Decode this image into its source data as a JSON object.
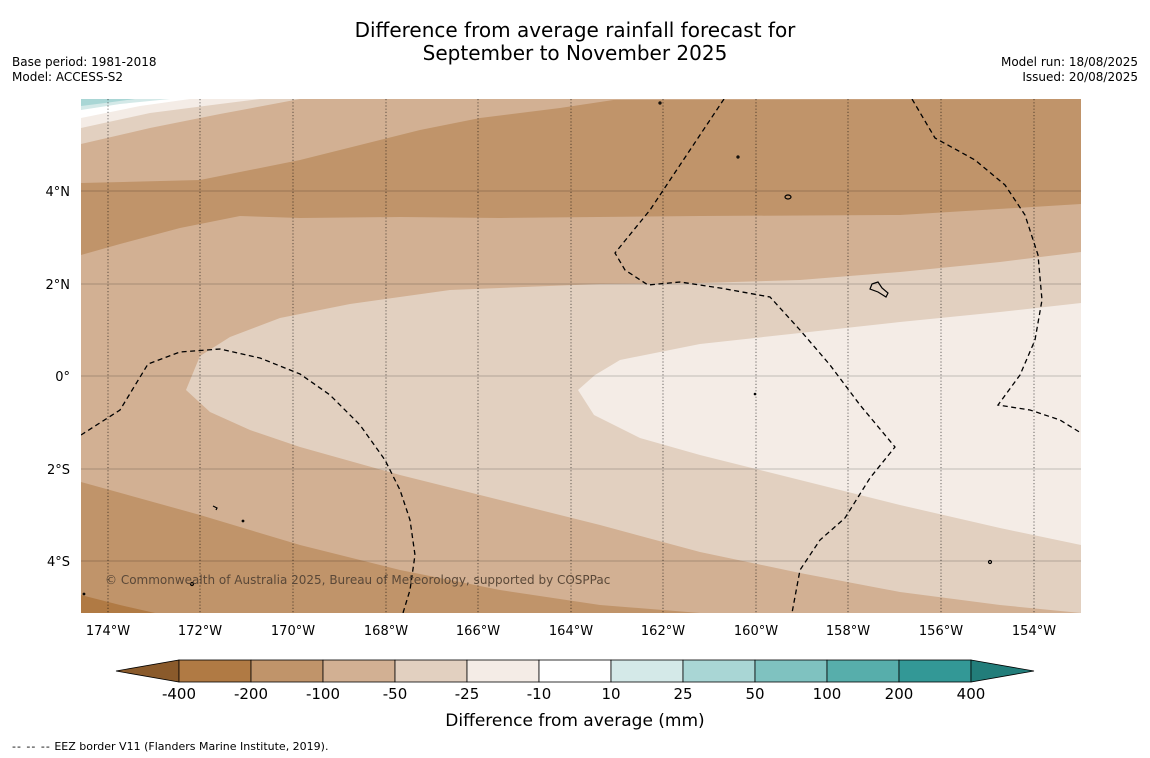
{
  "title": {
    "line1": "Difference from average rainfall forecast for",
    "line2": "September to November 2025"
  },
  "meta_left": {
    "base_period": "Base period: 1981-2018",
    "model": "Model: ACCESS-S2"
  },
  "meta_right": {
    "model_run": "Model run: 18/08/2025",
    "issued": "Issued: 20/08/2025"
  },
  "copyright": "© Commonwealth of Australia 2025, Bureau of Meteorology, supported by COSPPac",
  "map": {
    "lat_labels": [
      "4°N",
      "2°N",
      "0°",
      "2°S",
      "4°S"
    ],
    "lon_labels": [
      "174°W",
      "172°W",
      "170°W",
      "168°W",
      "166°W",
      "164°W",
      "162°W",
      "160°W",
      "158°W",
      "156°W",
      "154°W"
    ],
    "colors": {
      "lt_-400": "#8a5a2b",
      "-400_-200": "#b07a44",
      "-200_-100": "#c0946a",
      "-100_-50": "#d2b093",
      "-50_-25": "#e2d0c0",
      "-25_-10": "#f4ece6",
      "-10_10": "#ffffff",
      "10_25": "#d4e9e8",
      "25_50": "#a9d6d5",
      "50_100": "#7fc2c0",
      "100_200": "#57aeab",
      "200_400": "#339896",
      "gt_400": "#227d7a"
    }
  },
  "legend": {
    "ticks": [
      "-400",
      "-200",
      "-100",
      "-50",
      "-25",
      "-10",
      "10",
      "25",
      "50",
      "100",
      "200",
      "400"
    ],
    "label": "Difference from average (mm)"
  },
  "footnote": {
    "dash": "--  --  --",
    "text": "EEZ border V11 (Flanders Marine Institute, 2019)."
  }
}
